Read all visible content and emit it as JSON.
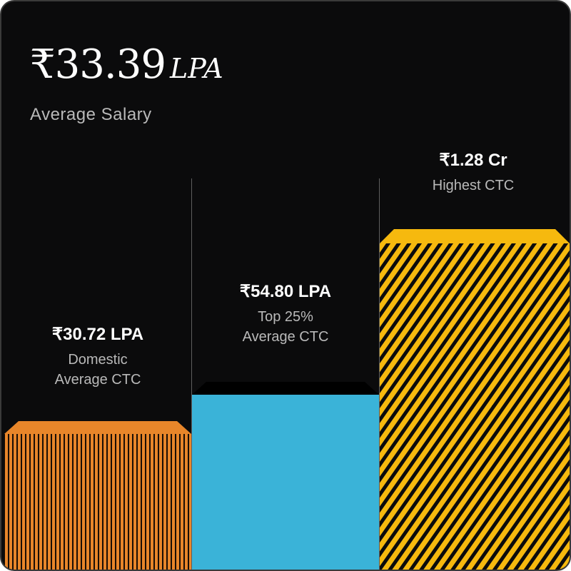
{
  "headline": {
    "value": "₹33.39",
    "unit": "LPA",
    "label": "Average Salary"
  },
  "chart_data": {
    "type": "bar",
    "categories": [
      "Domestic Average CTC",
      "Top 25% Average CTC",
      "Highest CTC"
    ],
    "value_labels": [
      "₹30.72 LPA",
      "₹54.80 LPA",
      "₹1.28 Cr"
    ],
    "label_lines": [
      [
        "Domestic",
        "Average CTC"
      ],
      [
        "Top 25%",
        "Average CTC"
      ],
      [
        "Highest CTC"
      ]
    ],
    "values_lpa": [
      30.72,
      54.8,
      128
    ],
    "colors": [
      "#e8862a",
      "#3ab3d8",
      "#f6b90e"
    ],
    "patterns": [
      "vertical-stripes",
      "solid",
      "diagonal-stripes"
    ]
  }
}
